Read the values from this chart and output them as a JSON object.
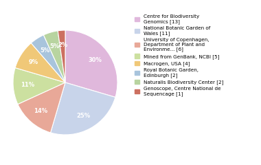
{
  "labels": [
    "Centre for Biodiversity\nGenomics [13]",
    "National Botanic Garden of\nWales [11]",
    "University of Copenhagen,\nDepartment of Plant and\nEnvironme... [6]",
    "Mined from GenBank, NCBI [5]",
    "Macrogen, USA [4]",
    "Royal Botanic Garden,\nEdinburgh [2]",
    "Naturalis Biodiversity Center [2]",
    "Genoscope, Centre National de\nSequencage [1]"
  ],
  "values": [
    13,
    11,
    6,
    5,
    4,
    2,
    2,
    1
  ],
  "colors": [
    "#e0b8dc",
    "#c8d4ea",
    "#e8a898",
    "#cce0a0",
    "#f0c878",
    "#a8c4dc",
    "#b8d4a0",
    "#cc7060"
  ],
  "background_color": "#ffffff",
  "startangle": 90
}
